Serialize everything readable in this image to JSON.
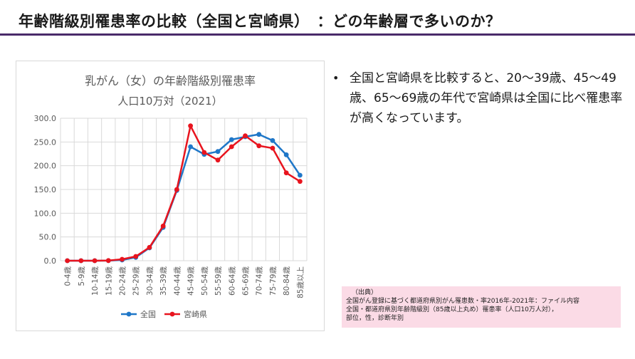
{
  "header": {
    "title": "年齢階級別罹患率の比較（全国と宮崎県）　：どの年齢層で多いのか？"
  },
  "colors": {
    "accent_rule": "#4a2a6a",
    "series_national": "#1f77c8",
    "series_miyazaki": "#e8141e",
    "source_bg": "#fbdbe6"
  },
  "chart_data": {
    "type": "line",
    "title": "乳がん（女）の年齢階級別罹患率",
    "subtitle": "人口10万対（2021）",
    "xlabel": "",
    "ylabel": "",
    "ylim": [
      0,
      300
    ],
    "yticks": [
      "0.0",
      "50.0",
      "100.0",
      "150.0",
      "200.0",
      "250.0",
      "300.0"
    ],
    "grid": true,
    "legend_position": "bottom",
    "categories": [
      "0-4歳",
      "5-9歳",
      "10-14歳",
      "15-19歳",
      "20-24歳",
      "25-29歳",
      "30-34歳",
      "35-39歳",
      "40-44歳",
      "45-49歳",
      "50-54歳",
      "55-59歳",
      "60-64歳",
      "65-69歳",
      "70-74歳",
      "75-79歳",
      "80-84歳",
      "85歳以上"
    ],
    "series": [
      {
        "name": "全国",
        "color": "#1f77c8",
        "values": [
          0,
          0,
          0,
          0.2,
          1.5,
          7,
          27,
          70,
          148,
          240,
          224,
          230,
          255,
          261,
          266,
          253,
          223,
          180
        ]
      },
      {
        "name": "宮崎県",
        "color": "#e8141e",
        "values": [
          0,
          0,
          0,
          0.3,
          3,
          9,
          28,
          73,
          150,
          284,
          228,
          212,
          240,
          263,
          242,
          237,
          185,
          167
        ]
      }
    ]
  },
  "bullet": {
    "text": "全国と宮崎県を比較すると、20～39歳、45～49歳、65～69歳の年代で宮崎県は全国に比べ罹患率が高くなっています。"
  },
  "source": {
    "heading": "（出典）",
    "line1": "全国がん登録に基づく都道府県別がん罹患数・率2016年-2021年：ファイル内容",
    "line2": "全国・都道府県別年齢階級別（85歳以上丸め）罹患率（人口10万人対），",
    "line3": "部位，性，診断年別"
  }
}
